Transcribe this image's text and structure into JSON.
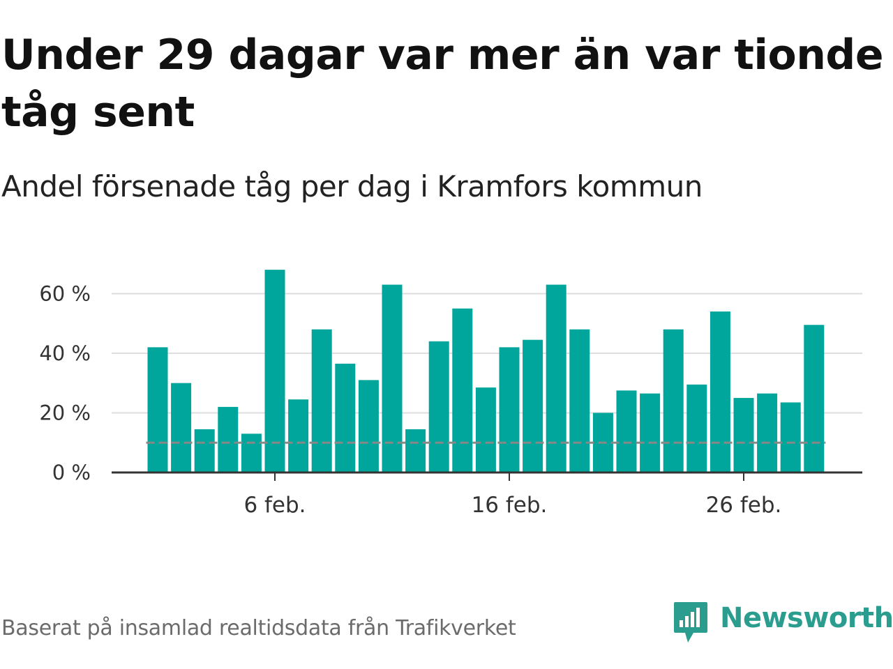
{
  "title": "Under 29 dagar var mer än var tionde tåg sent",
  "subtitle": "Andel försenade tåg per dag i Kramfors kommun",
  "source": "Baserat på insamlad realtidsdata från Trafikverket",
  "brand": "Newsworthy",
  "colors": {
    "bar": "#00a59b",
    "reference": "#888888",
    "grid": "#dddddd",
    "axis": "#333333",
    "brand": "#2a9d8f"
  },
  "chart_data": {
    "type": "bar",
    "title": "Andel försenade tåg per dag i Kramfors kommun",
    "xlabel": "",
    "ylabel": "",
    "x": [
      1,
      2,
      3,
      4,
      5,
      6,
      7,
      8,
      9,
      10,
      11,
      12,
      13,
      14,
      15,
      16,
      17,
      18,
      19,
      20,
      21,
      22,
      23,
      24,
      25,
      26,
      27,
      28,
      29
    ],
    "values": [
      42,
      30,
      14.5,
      22,
      13,
      68,
      24.5,
      48,
      36.5,
      31,
      63,
      14.5,
      44,
      55,
      28.5,
      42,
      44.5,
      63,
      48,
      20,
      27.5,
      26.5,
      48,
      29.5,
      54,
      25,
      26.5,
      23.5,
      49.5
    ],
    "unit": "%",
    "reference_line": {
      "value": 10,
      "style": "dashed"
    },
    "ylim": [
      0,
      72
    ],
    "yticks": [
      0,
      20,
      40,
      60
    ],
    "ytick_labels": [
      "0 %",
      "20 %",
      "40 %",
      "60 %"
    ],
    "xticks": [
      6,
      16,
      26
    ],
    "xtick_labels": [
      "6 feb.",
      "16 feb.",
      "26 feb."
    ],
    "grid": true
  }
}
